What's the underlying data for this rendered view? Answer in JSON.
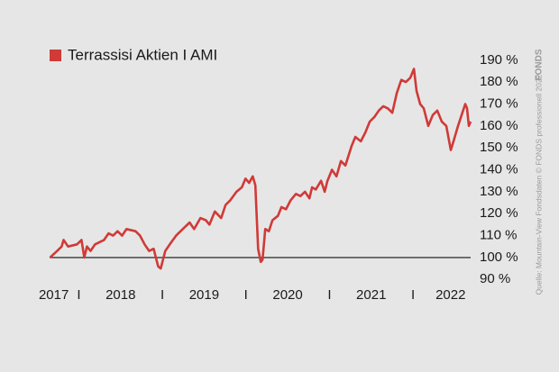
{
  "chart_data": {
    "type": "line",
    "source": "Quelle: Mountain-View Fondsdaten  © FONDS professionell 2022",
    "logo": "FONDS",
    "series": [
      {
        "name": "Terrassisi Aktien I AMI",
        "color": "#d03a37",
        "x": [
          2017.655,
          2017.741,
          2017.795,
          2017.817,
          2017.871,
          2017.978,
          2018.032,
          2018.065,
          2018.097,
          2018.14,
          2018.194,
          2018.302,
          2018.356,
          2018.41,
          2018.464,
          2018.518,
          2018.571,
          2018.679,
          2018.733,
          2018.787,
          2018.841,
          2018.895,
          2018.949,
          2018.981,
          2019.035,
          2019.089,
          2019.164,
          2019.272,
          2019.326,
          2019.38,
          2019.456,
          2019.52,
          2019.563,
          2019.628,
          2019.704,
          2019.757,
          2019.811,
          2019.887,
          2019.951,
          2019.995,
          2020.038,
          2020.081,
          2020.113,
          2020.146,
          2020.178,
          2020.199,
          2020.232,
          2020.275,
          2020.318,
          2020.383,
          2020.426,
          2020.48,
          2020.534,
          2020.598,
          2020.652,
          2020.706,
          2020.76,
          2020.792,
          2020.836,
          2020.9,
          2020.943,
          2020.976,
          2021.03,
          2021.084,
          2021.137,
          2021.191,
          2021.267,
          2021.31,
          2021.375,
          2021.429,
          2021.482,
          2021.536,
          2021.59,
          2021.644,
          2021.698,
          2021.752,
          2021.806,
          2021.86,
          2021.914,
          2021.968,
          2022.011,
          2022.043,
          2022.086,
          2022.129,
          2022.183,
          2022.237,
          2022.291,
          2022.345,
          2022.399,
          2022.453,
          2022.485,
          2022.539,
          2022.582,
          2022.625,
          2022.647,
          2022.668,
          2022.69
        ],
        "values": [
          100,
          103,
          105,
          108,
          105,
          106,
          108,
          100,
          105,
          103,
          106,
          108,
          111,
          110,
          112,
          110,
          113,
          112,
          110,
          106,
          103,
          104,
          96,
          95,
          103,
          106,
          110,
          114,
          116,
          113,
          118,
          117,
          115,
          121,
          118,
          124,
          126,
          130,
          132,
          136,
          134,
          137,
          133,
          104,
          98,
          99,
          113,
          112,
          117,
          119,
          123,
          122,
          126,
          129,
          128,
          130,
          127,
          132,
          131,
          135,
          130,
          135,
          140,
          137,
          144,
          142,
          151,
          155,
          153,
          157,
          162,
          164,
          167,
          169,
          168,
          166,
          175,
          181,
          180,
          182,
          186,
          176,
          170,
          168,
          160,
          165,
          167,
          162,
          160,
          149,
          153,
          160,
          165,
          170,
          168,
          160,
          162
        ]
      }
    ],
    "xlim": [
      2017.65,
      2022.69
    ],
    "xticks": [
      {
        "value": 2017.7,
        "label": "2017"
      },
      {
        "value": 2018,
        "label": "I"
      },
      {
        "value": 2018.5,
        "label": "2018"
      },
      {
        "value": 2019,
        "label": "I"
      },
      {
        "value": 2019.5,
        "label": "2019"
      },
      {
        "value": 2020,
        "label": "I"
      },
      {
        "value": 2020.5,
        "label": "2020"
      },
      {
        "value": 2021,
        "label": "I"
      },
      {
        "value": 2021.5,
        "label": "2021"
      },
      {
        "value": 2022,
        "label": "I"
      },
      {
        "value": 2022.45,
        "label": "2022"
      }
    ],
    "ylim": [
      86,
      201
    ],
    "yticks": [
      {
        "value": 90,
        "label": "90 %"
      },
      {
        "value": 100,
        "label": "100 %"
      },
      {
        "value": 110,
        "label": "110 %"
      },
      {
        "value": 120,
        "label": "120 %"
      },
      {
        "value": 130,
        "label": "130 %"
      },
      {
        "value": 140,
        "label": "140 %"
      },
      {
        "value": 150,
        "label": "150 %"
      },
      {
        "value": 160,
        "label": "160 %"
      },
      {
        "value": 170,
        "label": "170 %"
      },
      {
        "value": 180,
        "label": "180 %"
      },
      {
        "value": 190,
        "label": "190 %"
      }
    ],
    "legend": "top-left"
  }
}
